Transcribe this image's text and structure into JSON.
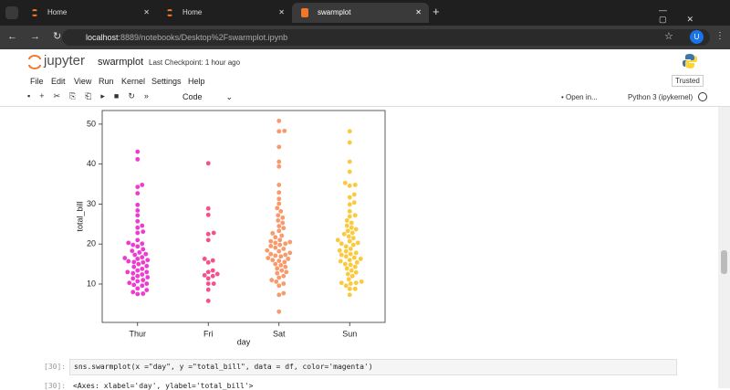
{
  "browser": {
    "tabs": [
      "Home",
      "Home",
      "swarmplot"
    ],
    "url_host": "localhost",
    "url_path": ":8889/notebooks/Desktop%2Fswarmplot.ipynb",
    "profile": "U"
  },
  "header": {
    "logo": "jupyter",
    "notebook": "swarmplot",
    "checkpoint": "Last Checkpoint: 1 hour ago",
    "trusted": "Trusted"
  },
  "menu": [
    "File",
    "Edit",
    "View",
    "Run",
    "Kernel",
    "Settings",
    "Help"
  ],
  "toolbar": {
    "cell_type": "Code",
    "open_in": "• Open in...",
    "kernel": "Python 3 (ipykernel)"
  },
  "chart_data": {
    "type": "swarm",
    "xlabel": "day",
    "ylabel": "total_bill",
    "categories": [
      "Thur",
      "Fri",
      "Sat",
      "Sun"
    ],
    "colors": [
      "#ee3ad0",
      "#f4508c",
      "#f79a6c",
      "#fbc93b"
    ],
    "values": [
      [
        43.1,
        41.2,
        34.8,
        34.3,
        32.7,
        29.8,
        28.4,
        27.2,
        25.7,
        24.6,
        24.1,
        23.1,
        22.8,
        21.0,
        20.3,
        20.1,
        19.8,
        19.4,
        18.7,
        18.3,
        17.9,
        17.5,
        17.3,
        16.7,
        16.5,
        16.3,
        16.0,
        15.7,
        15.5,
        15.4,
        15.0,
        14.5,
        14.3,
        13.8,
        13.4,
        13.0,
        13.0,
        12.7,
        12.4,
        12.0,
        11.7,
        11.4,
        11.0,
        10.7,
        10.3,
        10.1,
        9.8,
        9.6,
        8.9,
        8.5,
        8.0,
        7.6,
        7.5
      ],
      [
        40.2,
        28.9,
        27.3,
        22.8,
        22.5,
        21.0,
        16.3,
        15.9,
        15.4,
        13.4,
        13.0,
        12.5,
        12.2,
        12.0,
        11.4,
        10.1,
        10.1,
        8.6,
        5.8
      ],
      [
        50.8,
        48.3,
        48.2,
        44.3,
        40.6,
        39.4,
        34.8,
        32.9,
        31.3,
        30.1,
        29.0,
        28.2,
        27.2,
        26.6,
        25.9,
        25.3,
        24.5,
        24.0,
        23.3,
        22.7,
        22.1,
        21.7,
        21.0,
        20.7,
        20.5,
        20.3,
        20.1,
        19.8,
        19.5,
        19.1,
        18.8,
        18.4,
        18.2,
        17.8,
        17.5,
        17.3,
        17.1,
        16.9,
        16.5,
        16.3,
        16.0,
        15.8,
        15.5,
        15.0,
        14.7,
        14.3,
        13.9,
        13.4,
        13.0,
        12.7,
        12.0,
        11.6,
        11.0,
        10.6,
        10.1,
        9.6,
        7.7,
        7.3,
        3.1
      ],
      [
        48.2,
        45.4,
        40.6,
        38.1,
        35.3,
        34.8,
        34.6,
        32.4,
        31.7,
        30.4,
        29.9,
        28.2,
        27.2,
        26.9,
        25.9,
        25.3,
        24.6,
        24.1,
        23.7,
        23.3,
        22.8,
        22.5,
        21.9,
        21.5,
        21.0,
        20.7,
        20.3,
        20.1,
        19.8,
        19.4,
        18.8,
        18.4,
        18.2,
        17.8,
        17.5,
        17.3,
        16.9,
        16.6,
        16.3,
        16.0,
        15.7,
        15.4,
        15.0,
        14.8,
        14.3,
        13.9,
        13.4,
        12.9,
        12.5,
        12.0,
        11.2,
        10.6,
        10.3,
        10.3,
        10.1,
        9.6,
        8.8,
        8.8,
        7.3
      ]
    ],
    "ylim": [
      0.4,
      53.4
    ],
    "yticks": [
      10,
      20,
      30,
      40,
      50
    ]
  },
  "cell": {
    "prompt": "[30]:",
    "code": "sns.swarmplot(x =\"day\", y =\"total_bill\", data = df, color='magenta')",
    "out_prompt": "[30]:",
    "output": "<Axes: xlabel='day', ylabel='total_bill'>"
  }
}
